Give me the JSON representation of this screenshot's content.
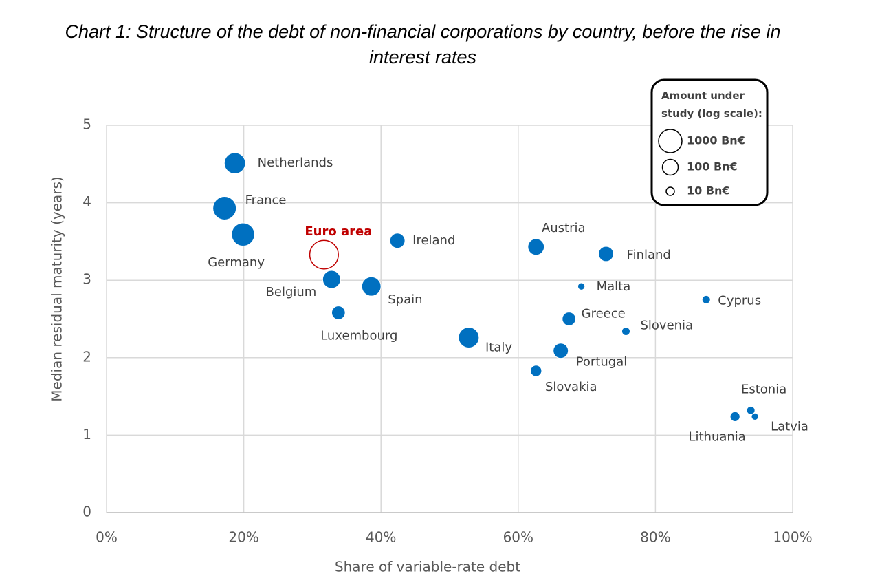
{
  "chart_data": {
    "type": "bubble",
    "title": "Chart 1: Structure of the debt of non-financial corporations by country, before the rise in interest rates",
    "x_label": "Share of variable-rate debt",
    "y_label": "Median residual maturity (years)",
    "xlim": [
      0,
      100
    ],
    "xticks": [
      {
        "value": 0,
        "label": "0%"
      },
      {
        "value": 20,
        "label": "20%"
      },
      {
        "value": 40,
        "label": "40%"
      },
      {
        "value": 60,
        "label": "60%"
      },
      {
        "value": 80,
        "label": "80%"
      },
      {
        "value": 100,
        "label": "100%"
      }
    ],
    "ylim": [
      0,
      5
    ],
    "yticks": [
      0,
      1,
      2,
      3,
      4,
      5
    ],
    "grid": true,
    "series": [
      {
        "color": "#0070c0",
        "filled": true,
        "labels": [
          "Netherlands",
          "France",
          "Germany",
          "Ireland",
          "Belgium",
          "Spain",
          "Luxembourg",
          "Italy",
          "Austria",
          "Finland",
          "Malta",
          "Cyprus",
          "Greece",
          "Slovenia",
          "Portugal",
          "Slovakia",
          "Estonia",
          "Latvia",
          "Lithuania"
        ],
        "x": [
          18.7,
          17.2,
          19.9,
          42.4,
          32.8,
          38.6,
          33.8,
          52.8,
          62.6,
          72.8,
          69.2,
          87.4,
          67.4,
          75.7,
          66.2,
          62.6,
          93.9,
          94.5,
          91.6
        ],
        "values": [
          4.51,
          3.93,
          3.59,
          3.51,
          3.01,
          2.92,
          2.58,
          2.26,
          3.43,
          3.34,
          2.92,
          2.75,
          2.5,
          2.34,
          2.09,
          1.83,
          1.32,
          1.24,
          1.24
        ],
        "sizes": [
          500,
          1000,
          900,
          80,
          190,
          280,
          50,
          420,
          120,
          80,
          7,
          10,
          50,
          10,
          80,
          25,
          10,
          7,
          16
        ]
      },
      {
        "color": "#c00000",
        "filled": false,
        "labels": [
          "Euro area"
        ],
        "x": [
          31.7
        ],
        "values": [
          3.33
        ],
        "sizes": [
          5000
        ]
      }
    ],
    "size_legend": {
      "title": "Amount under study (log scale):",
      "entries": [
        {
          "value": 1000,
          "label": "1000 Bn€"
        },
        {
          "value": 100,
          "label": "100 Bn€"
        },
        {
          "value": 10,
          "label": "10 Bn€"
        }
      ]
    }
  }
}
